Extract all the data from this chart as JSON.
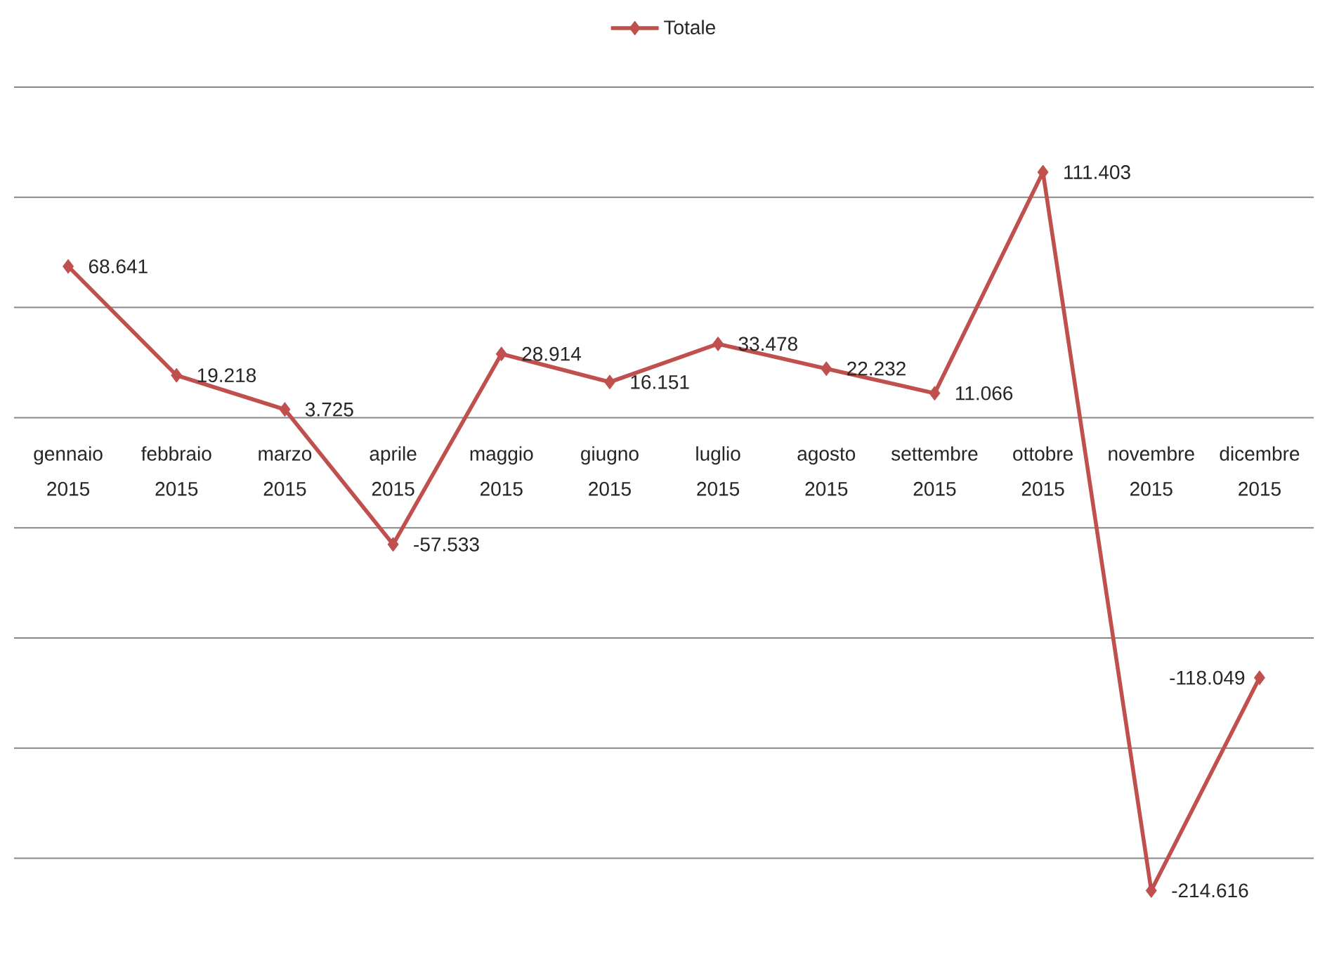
{
  "chart_data": {
    "type": "line",
    "categories": [
      "gennaio 2015",
      "febbraio 2015",
      "marzo 2015",
      "aprile 2015",
      "maggio 2015",
      "giugno 2015",
      "luglio 2015",
      "agosto 2015",
      "settembre 2015",
      "ottobre 2015",
      "novembre 2015",
      "dicembre 2015"
    ],
    "series": [
      {
        "name": "Totale",
        "color": "#c0504d",
        "values": [
          68.641,
          19.218,
          3.725,
          -57.533,
          28.914,
          16.151,
          33.478,
          22.232,
          11.066,
          111.403,
          -214.616,
          -118.049
        ]
      }
    ],
    "yticks": [
      {
        "value": 150,
        "label": null
      },
      {
        "value": 100,
        "label": null
      },
      {
        "value": 50,
        "label": null
      },
      {
        "value": 0,
        "label": null
      },
      {
        "value": -50,
        "label": null
      },
      {
        "value": -100,
        "label": null
      },
      {
        "value": -150,
        "label": null
      },
      {
        "value": -200,
        "label": null
      }
    ],
    "grid": "y",
    "legend": "top",
    "marker": "diamond",
    "line_style": "solid",
    "data_labels": true,
    "tick_labels": "x"
  }
}
